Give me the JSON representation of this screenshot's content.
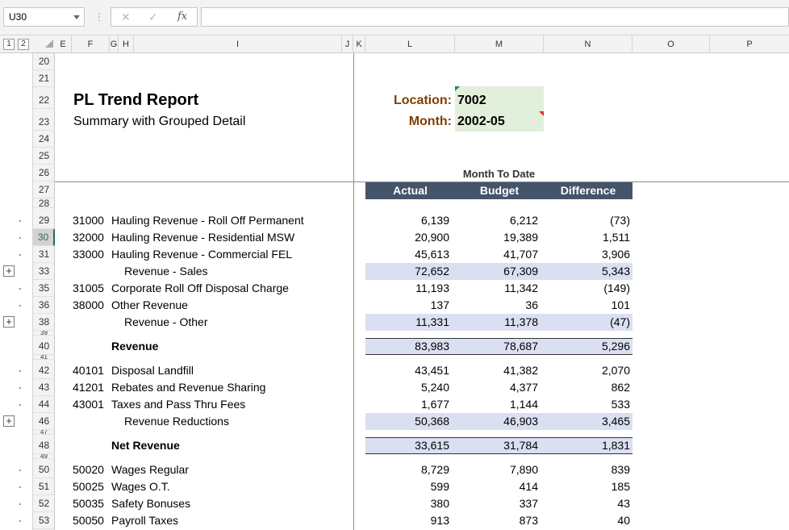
{
  "formula_bar": {
    "name_box": "U30",
    "separator": "⋮",
    "cancel_icon": "✕",
    "enter_icon": "✓",
    "fx_label": "fx",
    "formula": ""
  },
  "outline_levels": [
    "1",
    "2"
  ],
  "columns": [
    "E",
    "F",
    "G",
    "H",
    "I",
    "J",
    "K",
    "L",
    "M",
    "N",
    "O",
    "P"
  ],
  "rows": [
    "20",
    "21",
    "22",
    "23",
    "24",
    "25",
    "26",
    "27",
    "28",
    "29",
    "30",
    "31",
    "33",
    "35",
    "36",
    "38",
    "39",
    "40",
    "41",
    "42",
    "43",
    "44",
    "46",
    "47",
    "48",
    "49",
    "50",
    "51",
    "52",
    "53"
  ],
  "active_row": "30",
  "report": {
    "title": "PL Trend Report",
    "subtitle": "Summary with Grouped Detail",
    "location_label": "Location:",
    "location_value": "7002",
    "month_label": "Month:",
    "month_value": "2002-05",
    "section_header": "Month To Date",
    "col_actual": "Actual",
    "col_budget": "Budget",
    "col_difference": "Difference"
  },
  "lines": [
    {
      "code": "31000",
      "name": "Hauling Revenue - Roll Off Permanent",
      "actual": "6,139",
      "budget": "6,212",
      "diff": "(73)"
    },
    {
      "code": "32000",
      "name": "Hauling Revenue - Residential MSW",
      "actual": "20,900",
      "budget": "19,389",
      "diff": "1,511"
    },
    {
      "code": "33000",
      "name": "Hauling Revenue - Commercial FEL",
      "actual": "45,613",
      "budget": "41,707",
      "diff": "3,906"
    },
    {
      "code": "",
      "name": "Revenue - Sales",
      "actual": "72,652",
      "budget": "67,309",
      "diff": "5,343"
    },
    {
      "code": "31005",
      "name": "Corporate Roll Off Disposal Charge",
      "actual": "11,193",
      "budget": "11,342",
      "diff": "(149)"
    },
    {
      "code": "38000",
      "name": "Other Revenue",
      "actual": "137",
      "budget": "36",
      "diff": "101"
    },
    {
      "code": "",
      "name": "Revenue - Other",
      "actual": "11,331",
      "budget": "11,378",
      "diff": "(47)"
    },
    {
      "code": "",
      "name": "Revenue",
      "actual": "83,983",
      "budget": "78,687",
      "diff": "5,296"
    },
    {
      "code": "40101",
      "name": "Disposal Landfill",
      "actual": "43,451",
      "budget": "41,382",
      "diff": "2,070"
    },
    {
      "code": "41201",
      "name": "Rebates and Revenue Sharing",
      "actual": "5,240",
      "budget": "4,377",
      "diff": "862"
    },
    {
      "code": "43001",
      "name": "Taxes and Pass Thru Fees",
      "actual": "1,677",
      "budget": "1,144",
      "diff": "533"
    },
    {
      "code": "",
      "name": "Revenue Reductions",
      "actual": "50,368",
      "budget": "46,903",
      "diff": "3,465"
    },
    {
      "code": "",
      "name": "Net Revenue",
      "actual": "33,615",
      "budget": "31,784",
      "diff": "1,831"
    },
    {
      "code": "50020",
      "name": "Wages Regular",
      "actual": "8,729",
      "budget": "7,890",
      "diff": "839"
    },
    {
      "code": "50025",
      "name": "Wages O.T.",
      "actual": "599",
      "budget": "414",
      "diff": "185"
    },
    {
      "code": "50035",
      "name": "Safety Bonuses",
      "actual": "380",
      "budget": "337",
      "diff": "43"
    },
    {
      "code": "50050",
      "name": "Payroll Taxes",
      "actual": "913",
      "budget": "873",
      "diff": "40"
    }
  ],
  "colors": {
    "header_band": "#44546a",
    "subtotal_band": "#dae0f1",
    "label_brown": "#7f3f00",
    "input_green": "#e2efda",
    "active_green": "#217346"
  }
}
